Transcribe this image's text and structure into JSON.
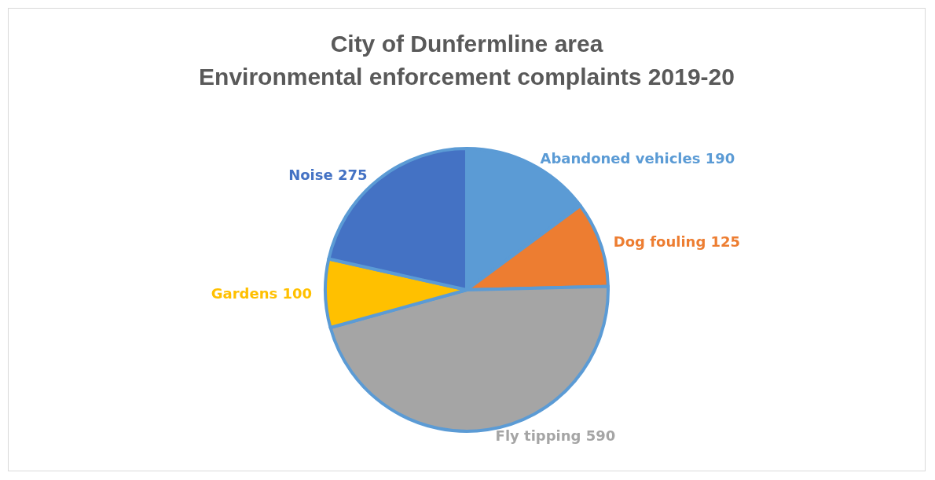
{
  "chart_data": {
    "type": "pie",
    "title": "City of Dunfermline area\nEnvironmental enforcement complaints 2019-20",
    "categories": [
      "Abandoned vehicles",
      "Dog fouling",
      "Fly tipping",
      "Gardens",
      "Noise"
    ],
    "values": [
      190,
      125,
      590,
      100,
      275
    ],
    "colors": [
      "#5b9bd5",
      "#ed7d31",
      "#a5a5a5",
      "#ffc000",
      "#4472c4"
    ],
    "data_labels": true,
    "legend": false
  }
}
